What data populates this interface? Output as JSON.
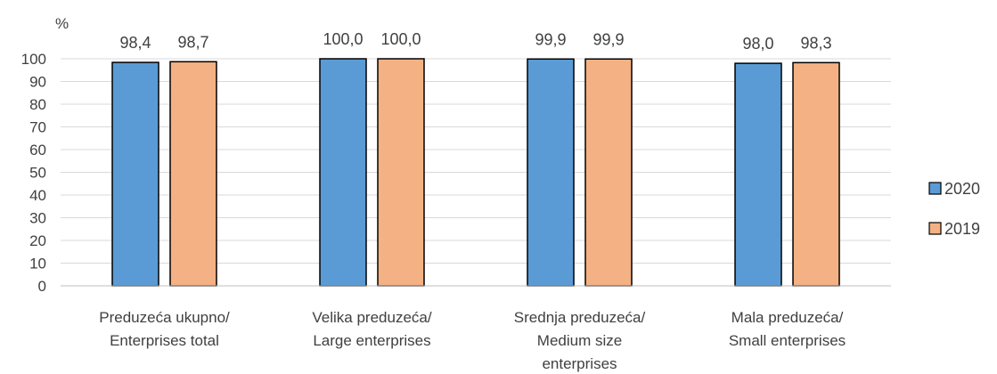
{
  "chart_data": {
    "type": "bar",
    "unit_label": "%",
    "ylim": [
      0,
      100
    ],
    "yticks": [
      "0",
      "10",
      "20",
      "30",
      "40",
      "50",
      "60",
      "70",
      "80",
      "90",
      "100"
    ],
    "grid": true,
    "legend_position": "right",
    "categories": [
      [
        "Preduzeća ukupno/",
        "Enterprises total"
      ],
      [
        "Velika preduzeća/",
        "Large enterprises"
      ],
      [
        "Srednja preduzeća/",
        "Medium size",
        "enterprises"
      ],
      [
        "Mala preduzeća/",
        "Small enterprises"
      ]
    ],
    "series": [
      {
        "name": "2020",
        "color": "#5b9bd5",
        "values": [
          98.4,
          100.0,
          99.9,
          98.0
        ],
        "labels": [
          "98,4",
          "100,0",
          "99,9",
          "98,0"
        ]
      },
      {
        "name": "2019",
        "color": "#f4b183",
        "values": [
          98.7,
          100.0,
          99.9,
          98.3
        ],
        "labels": [
          "98,7",
          "100,0",
          "99,9",
          "98,3"
        ]
      }
    ]
  }
}
